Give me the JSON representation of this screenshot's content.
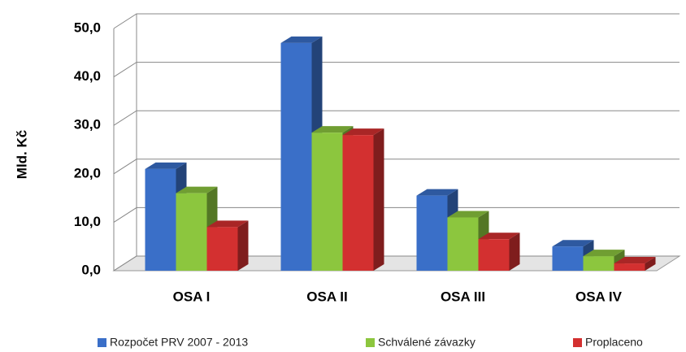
{
  "chart_data": {
    "type": "bar3d",
    "y_label": "Mld. Kč",
    "categories": [
      "OSA I",
      "OSA II",
      "OSA III",
      "OSA IV"
    ],
    "series": [
      {
        "name": "Rozpočet  PRV 2007 - 2013",
        "color": "#3a6fc8",
        "values": [
          21,
          47,
          15.5,
          5
        ]
      },
      {
        "name": "Schválené závazky",
        "color": "#8cc63e",
        "values": [
          16,
          28.5,
          11,
          3
        ]
      },
      {
        "name": "Proplaceno",
        "color": "#d33030",
        "values": [
          9,
          28,
          6.5,
          1.5
        ]
      }
    ],
    "ylim": [
      0,
      50
    ],
    "yticks": [
      {
        "value": 0,
        "label": "0,0"
      },
      {
        "value": 10,
        "label": "10,0"
      },
      {
        "value": 20,
        "label": "20,0"
      },
      {
        "value": 30,
        "label": "30,0"
      },
      {
        "value": 40,
        "label": "40,0"
      },
      {
        "value": 50,
        "label": "50,0"
      }
    ],
    "grid": true,
    "legend": "bottom"
  }
}
